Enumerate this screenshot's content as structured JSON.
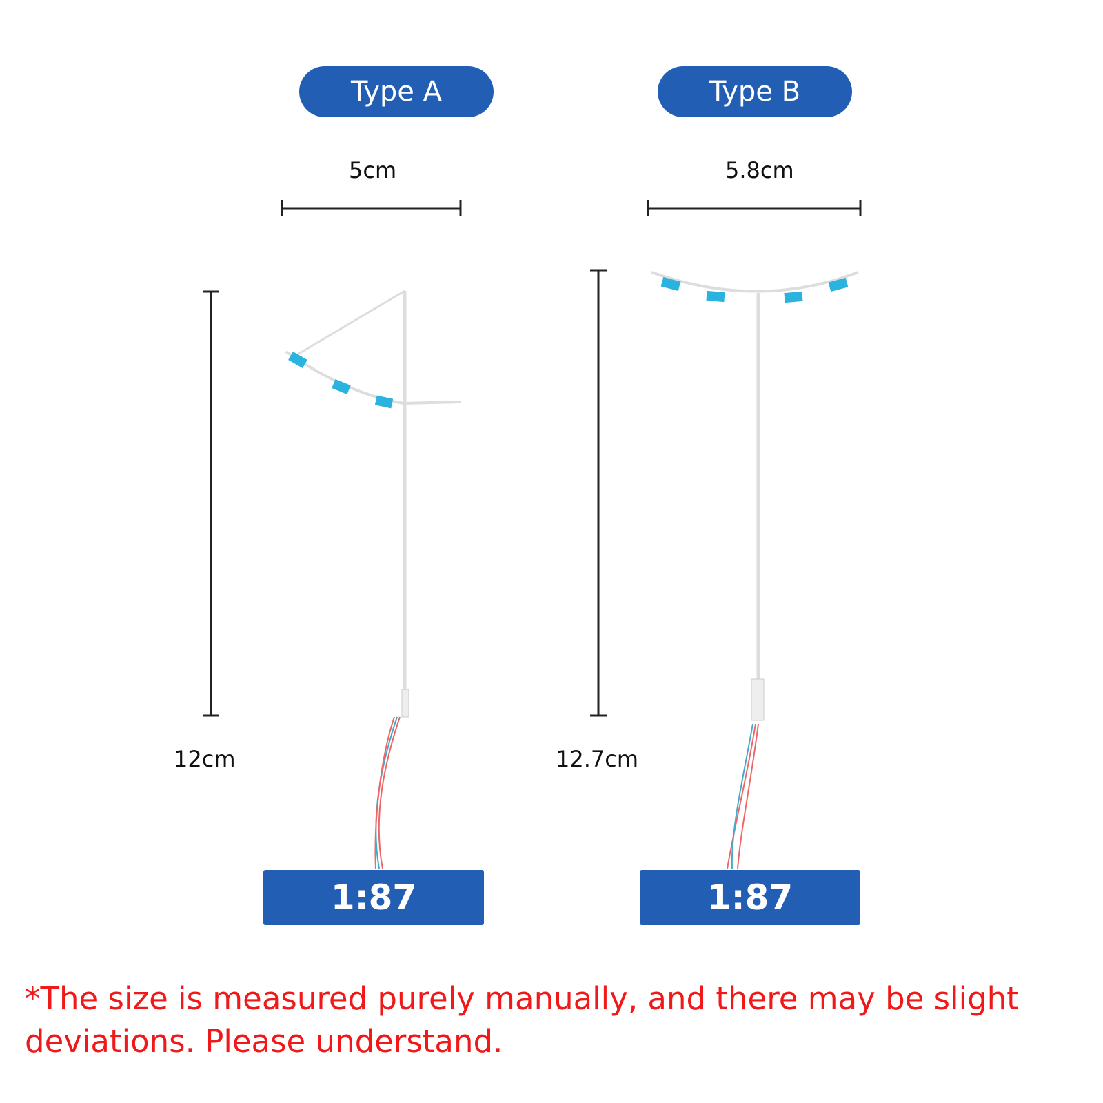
{
  "types": [
    {
      "label": "Type A",
      "width": "5cm",
      "height": "12cm",
      "scale": "1:87"
    },
    {
      "label": "Type B",
      "width": "5.8cm",
      "height": "12.7cm",
      "scale": "1:87"
    }
  ],
  "note": "*The size is measured purely manually, and there may be slight deviations. Please understand.",
  "colors": {
    "badge": "#235eb5",
    "note": "#f01818",
    "lamp": "#2bb3e0"
  }
}
